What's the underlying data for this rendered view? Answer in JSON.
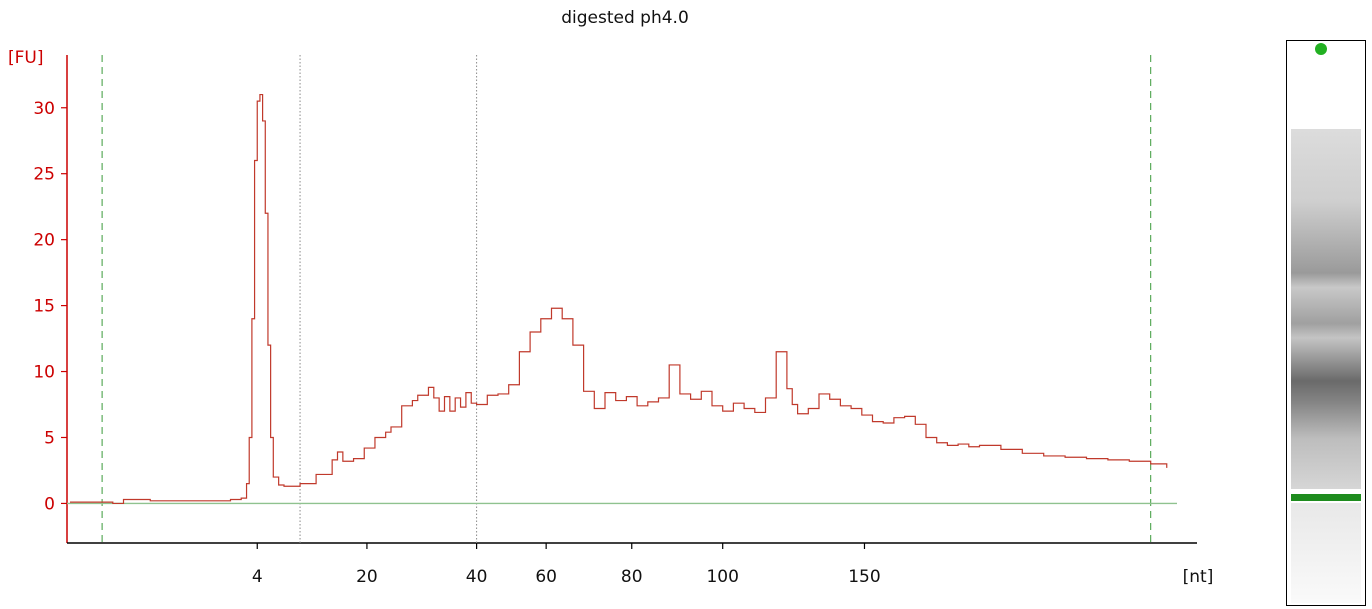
{
  "chart_data": {
    "type": "line",
    "title": "digested ph4.0",
    "ylabel": "[FU]",
    "xlabel": "[nt]",
    "ylim": [
      -3,
      34
    ],
    "yticks": [
      0,
      5,
      10,
      15,
      20,
      25,
      30
    ],
    "xticks": [
      {
        "label": "4",
        "t": 3.5
      },
      {
        "label": "20",
        "t": 5.55
      },
      {
        "label": "40",
        "t": 7.6
      },
      {
        "label": "60",
        "t": 8.9
      },
      {
        "label": "80",
        "t": 10.5
      },
      {
        "label": "100",
        "t": 12.2
      },
      {
        "label": "150",
        "t": 14.85
      }
    ],
    "x_domain": [
      0,
      20
    ],
    "time_markers": [
      {
        "t": 0.6,
        "style": "dashed-green"
      },
      {
        "t": 4.3,
        "style": "dotted-gray"
      },
      {
        "t": 7.6,
        "style": "dotted-gray"
      },
      {
        "t": 20.2,
        "style": "dashed-green"
      }
    ],
    "baseline": 0,
    "series": [
      {
        "x": [
          0,
          0.5,
          0.8,
          1.0,
          1.5,
          2.0,
          2.5,
          3.0,
          3.2,
          3.3,
          3.35,
          3.4,
          3.45,
          3.5,
          3.55,
          3.6,
          3.65,
          3.7,
          3.75,
          3.8,
          3.9,
          4.0,
          4.3,
          4.6,
          4.9,
          5.0,
          5.1,
          5.3,
          5.5,
          5.7,
          5.9,
          6.0,
          6.2,
          6.4,
          6.5,
          6.7,
          6.8,
          6.9,
          7.0,
          7.1,
          7.2,
          7.3,
          7.4,
          7.5,
          7.6,
          7.8,
          8.0,
          8.2,
          8.4,
          8.6,
          8.8,
          9.0,
          9.2,
          9.4,
          9.6,
          9.8,
          10.0,
          10.2,
          10.4,
          10.6,
          10.8,
          11.0,
          11.2,
          11.4,
          11.6,
          11.8,
          12.0,
          12.2,
          12.4,
          12.6,
          12.8,
          13.0,
          13.2,
          13.4,
          13.5,
          13.6,
          13.8,
          14.0,
          14.2,
          14.4,
          14.6,
          14.8,
          15.0,
          15.2,
          15.4,
          15.6,
          15.8,
          16.0,
          16.2,
          16.4,
          16.6,
          16.8,
          17.0,
          17.4,
          17.8,
          18.2,
          18.6,
          19.0,
          19.4,
          19.8,
          20.2,
          20.5
        ],
        "y": [
          0.1,
          0.1,
          0.0,
          0.3,
          0.2,
          0.2,
          0.2,
          0.3,
          0.4,
          1.5,
          5.0,
          14.0,
          26.0,
          30.5,
          31.0,
          29.0,
          22.0,
          12.0,
          5.0,
          2.0,
          1.4,
          1.3,
          1.5,
          2.2,
          3.3,
          3.9,
          3.2,
          3.4,
          4.2,
          5.0,
          5.4,
          5.8,
          7.4,
          7.8,
          8.2,
          8.8,
          8.0,
          7.0,
          8.1,
          7.0,
          8.0,
          7.3,
          8.4,
          7.6,
          7.5,
          8.2,
          8.3,
          9.0,
          11.5,
          13.0,
          14.0,
          14.8,
          14.0,
          12.0,
          8.5,
          7.2,
          8.4,
          7.8,
          8.1,
          7.4,
          7.7,
          8.0,
          10.5,
          8.3,
          7.9,
          8.5,
          7.4,
          7.0,
          7.6,
          7.2,
          6.9,
          8.0,
          11.5,
          8.7,
          7.5,
          6.8,
          7.2,
          8.3,
          7.9,
          7.4,
          7.2,
          6.7,
          6.2,
          6.1,
          6.5,
          6.6,
          6.0,
          5.0,
          4.6,
          4.4,
          4.5,
          4.3,
          4.4,
          4.1,
          3.8,
          3.6,
          3.5,
          3.4,
          3.3,
          3.2,
          3.0,
          2.7
        ]
      }
    ],
    "gel": {
      "marker_color": "#1e8c1e",
      "dot_color": "#22b022"
    }
  }
}
